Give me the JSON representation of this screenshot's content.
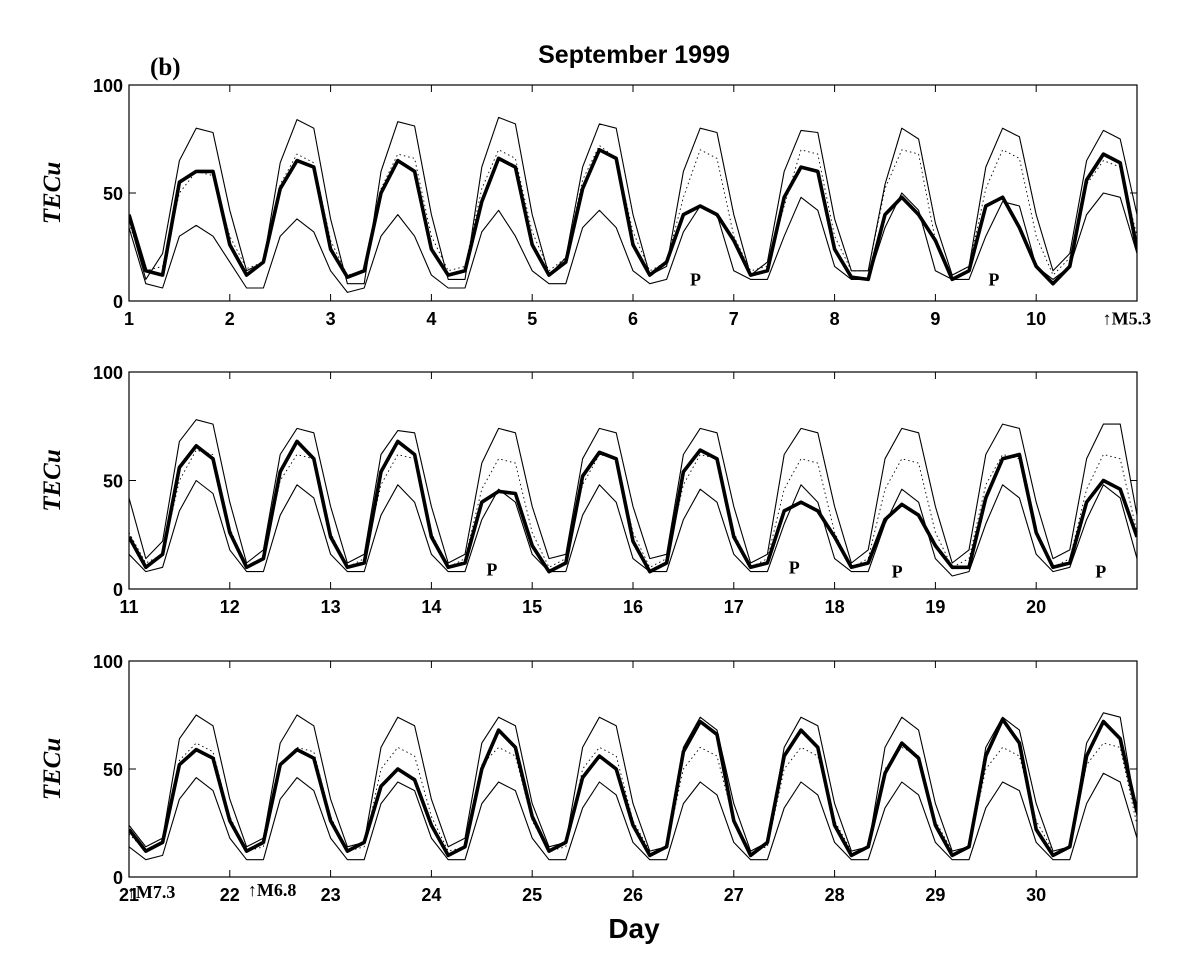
{
  "figure": {
    "panel_label": "(b)",
    "title": "September 1999",
    "xlabel": "Day",
    "ylabel": "TECu"
  },
  "chart_data": [
    {
      "type": "line",
      "xlim": [
        1,
        11
      ],
      "ylim": [
        0,
        100
      ],
      "yticks": [
        0,
        50,
        100
      ],
      "xticks": [
        1,
        2,
        3,
        4,
        5,
        6,
        7,
        8,
        9,
        10
      ],
      "series": [
        {
          "style": "upper-bound",
          "values": [
            [
              38,
              10,
              22,
              65,
              80,
              78,
              42,
              14,
              18,
              64,
              84,
              80,
              38,
              8,
              8,
              60,
              83,
              81,
              40,
              10,
              10,
              62,
              85,
              82,
              40,
              12,
              20,
              62,
              82,
              80,
              40,
              12,
              16,
              60,
              80,
              78,
              40,
              12,
              18,
              60,
              79,
              78,
              38,
              14,
              14,
              54,
              80,
              75,
              36,
              12,
              16,
              62,
              80,
              76,
              40,
              14,
              22,
              65,
              79,
              75,
              40
            ]
          ]
        },
        {
          "style": "mean",
          "values": [
            [
              36,
              14,
              16,
              50,
              60,
              58,
              30,
              15,
              18,
              54,
              68,
              64,
              28,
              12,
              14,
              52,
              68,
              66,
              30,
              14,
              16,
              52,
              70,
              66,
              32,
              14,
              20,
              56,
              72,
              66,
              32,
              14,
              18,
              48,
              70,
              66,
              30,
              14,
              16,
              44,
              70,
              68,
              30,
              14,
              14,
              52,
              70,
              68,
              28,
              12,
              16,
              52,
              70,
              66,
              30,
              12,
              20,
              54,
              65,
              62,
              30
            ]
          ]
        },
        {
          "style": "lower-bound",
          "values": [
            [
              34,
              8,
              6,
              30,
              35,
              30,
              18,
              6,
              6,
              30,
              38,
              32,
              14,
              4,
              6,
              30,
              40,
              30,
              12,
              6,
              6,
              32,
              42,
              30,
              14,
              8,
              8,
              34,
              42,
              34,
              14,
              8,
              10,
              32,
              44,
              40,
              14,
              10,
              10,
              30,
              48,
              42,
              16,
              10,
              10,
              34,
              50,
              42,
              14,
              10,
              10,
              30,
              46,
              44,
              16,
              10,
              16,
              40,
              50,
              48,
              22
            ]
          ]
        },
        {
          "style": "observed",
          "values": [
            [
              40,
              14,
              12,
              55,
              60,
              60,
              26,
              12,
              18,
              52,
              65,
              62,
              24,
              11,
              14,
              50,
              65,
              60,
              24,
              12,
              14,
              46,
              66,
              62,
              26,
              12,
              18,
              52,
              70,
              66,
              26,
              12,
              18,
              40,
              44,
              40,
              28,
              12,
              14,
              48,
              62,
              60,
              24,
              11,
              10,
              40,
              48,
              40,
              28,
              10,
              14,
              44,
              48,
              34,
              16,
              8,
              16,
              56,
              68,
              64,
              24
            ]
          ]
        }
      ],
      "annotations": [
        {
          "text": "P",
          "x": 6.62,
          "y": 10
        },
        {
          "text": "P",
          "x": 9.58,
          "y": 10
        },
        {
          "text": "↑M5.3",
          "x": 10.9,
          "y": -8
        }
      ]
    },
    {
      "type": "line",
      "xlim": [
        11,
        21
      ],
      "ylim": [
        0,
        100
      ],
      "yticks": [
        0,
        50,
        100
      ],
      "xticks": [
        11,
        12,
        13,
        14,
        15,
        16,
        17,
        18,
        19,
        20
      ],
      "series": [
        {
          "style": "upper-bound",
          "values": [
            [
              42,
              14,
              22,
              68,
              78,
              76,
              40,
              12,
              18,
              62,
              74,
              72,
              38,
              12,
              16,
              62,
              73,
              72,
              38,
              12,
              16,
              58,
              74,
              72,
              38,
              14,
              16,
              60,
              74,
              72,
              38,
              14,
              16,
              62,
              74,
              72,
              38,
              12,
              16,
              62,
              74,
              72,
              38,
              12,
              18,
              60,
              74,
              72,
              38,
              12,
              18,
              62,
              76,
              74,
              40,
              14,
              18,
              60,
              76,
              76,
              34
            ]
          ]
        },
        {
          "style": "mean",
          "values": [
            [
              26,
              12,
              16,
              50,
              64,
              62,
              28,
              10,
              14,
              50,
              62,
              60,
              26,
              10,
              14,
              48,
              62,
              60,
              26,
              10,
              14,
              46,
              60,
              58,
              26,
              10,
              14,
              48,
              62,
              60,
              26,
              10,
              14,
              48,
              62,
              60,
              26,
              10,
              14,
              46,
              60,
              58,
              26,
              10,
              14,
              46,
              60,
              58,
              26,
              10,
              14,
              48,
              62,
              60,
              26,
              10,
              14,
              46,
              62,
              60,
              26
            ]
          ]
        },
        {
          "style": "lower-bound",
          "values": [
            [
              16,
              8,
              10,
              36,
              50,
              44,
              18,
              8,
              8,
              34,
              48,
              42,
              16,
              8,
              8,
              34,
              48,
              40,
              16,
              8,
              8,
              32,
              46,
              40,
              16,
              8,
              8,
              34,
              48,
              40,
              14,
              8,
              8,
              32,
              46,
              40,
              16,
              8,
              8,
              30,
              48,
              40,
              14,
              8,
              8,
              30,
              46,
              40,
              14,
              6,
              8,
              30,
              48,
              42,
              16,
              8,
              10,
              32,
              48,
              42,
              14
            ]
          ]
        },
        {
          "style": "observed",
          "values": [
            [
              24,
              10,
              16,
              56,
              66,
              60,
              26,
              10,
              14,
              54,
              68,
              60,
              24,
              10,
              12,
              54,
              68,
              62,
              24,
              10,
              12,
              40,
              45,
              44,
              20,
              8,
              12,
              52,
              63,
              60,
              22,
              8,
              12,
              54,
              64,
              60,
              24,
              10,
              12,
              36,
              40,
              36,
              24,
              10,
              12,
              32,
              39,
              34,
              20,
              10,
              10,
              42,
              60,
              62,
              26,
              10,
              12,
              40,
              50,
              46,
              24
            ]
          ]
        }
      ],
      "annotations": [
        {
          "text": "P",
          "x": 14.6,
          "y": 9
        },
        {
          "text": "P",
          "x": 17.6,
          "y": 10
        },
        {
          "text": "P",
          "x": 18.62,
          "y": 8
        },
        {
          "text": "P",
          "x": 20.64,
          "y": 8
        }
      ]
    },
    {
      "type": "line",
      "xlim": [
        21,
        31
      ],
      "ylim": [
        0,
        100
      ],
      "yticks": [
        0,
        50,
        100
      ],
      "xticks": [
        21,
        22,
        23,
        24,
        25,
        26,
        27,
        28,
        29,
        30
      ],
      "series": [
        {
          "style": "upper-bound",
          "values": [
            [
              24,
              14,
              18,
              64,
              75,
              70,
              36,
              14,
              18,
              62,
              75,
              70,
              36,
              14,
              16,
              60,
              74,
              70,
              36,
              14,
              18,
              62,
              74,
              70,
              34,
              14,
              16,
              60,
              74,
              70,
              34,
              12,
              14,
              60,
              74,
              68,
              34,
              12,
              16,
              60,
              74,
              70,
              34,
              12,
              14,
              60,
              74,
              68,
              34,
              12,
              14,
              60,
              74,
              68,
              34,
              12,
              14,
              62,
              76,
              74,
              28
            ]
          ]
        },
        {
          "style": "mean",
          "values": [
            [
              20,
              12,
              16,
              54,
              62,
              58,
              28,
              12,
              14,
              52,
              60,
              58,
              28,
              12,
              14,
              50,
              60,
              56,
              28,
              12,
              14,
              52,
              60,
              56,
              26,
              12,
              14,
              50,
              60,
              56,
              26,
              12,
              14,
              50,
              60,
              56,
              26,
              12,
              14,
              50,
              60,
              56,
              26,
              12,
              14,
              50,
              60,
              56,
              26,
              12,
              14,
              50,
              60,
              56,
              26,
              12,
              14,
              52,
              62,
              60,
              24
            ]
          ]
        },
        {
          "style": "lower-bound",
          "values": [
            [
              14,
              8,
              10,
              36,
              46,
              40,
              18,
              8,
              8,
              36,
              46,
              40,
              18,
              8,
              8,
              34,
              44,
              40,
              18,
              8,
              8,
              34,
              44,
              40,
              18,
              8,
              8,
              32,
              44,
              38,
              16,
              8,
              8,
              34,
              44,
              38,
              16,
              8,
              8,
              32,
              44,
              38,
              16,
              8,
              8,
              32,
              44,
              38,
              16,
              8,
              8,
              32,
              44,
              40,
              16,
              8,
              8,
              34,
              48,
              44,
              18
            ]
          ]
        },
        {
          "style": "observed",
          "values": [
            [
              22,
              12,
              16,
              52,
              59,
              55,
              26,
              12,
              16,
              52,
              59,
              55,
              26,
              12,
              16,
              42,
              50,
              45,
              24,
              10,
              14,
              50,
              68,
              60,
              28,
              12,
              16,
              46,
              56,
              50,
              24,
              10,
              14,
              58,
              72,
              66,
              26,
              10,
              16,
              56,
              68,
              60,
              24,
              10,
              14,
              48,
              62,
              55,
              24,
              10,
              14,
              56,
              73,
              62,
              22,
              10,
              14,
              56,
              72,
              64,
              30
            ]
          ]
        }
      ],
      "annotations": [
        {
          "text": "↑M7.3",
          "x": 21.22,
          "y": -7
        },
        {
          "text": "↑M6.8",
          "x": 22.42,
          "y": -6
        }
      ]
    }
  ]
}
